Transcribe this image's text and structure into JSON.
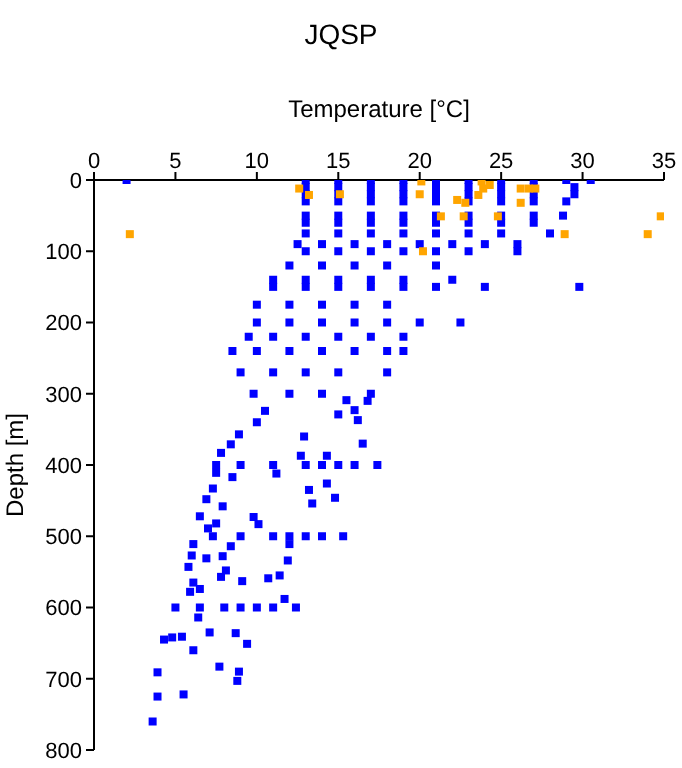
{
  "chart_data": {
    "type": "scatter",
    "title": "JQSP",
    "xlabel": "Temperature [°C]",
    "ylabel": "Depth [m]",
    "xlim": [
      0,
      35
    ],
    "xticks": [
      0,
      5,
      10,
      15,
      20,
      25,
      30,
      35
    ],
    "ylim": [
      800,
      0
    ],
    "yticks": [
      0,
      100,
      200,
      300,
      400,
      500,
      600,
      700,
      800
    ],
    "marker": "square",
    "series": [
      {
        "color": "#0000ff",
        "x": [
          2,
          13,
          15,
          17,
          19,
          21,
          23,
          25,
          27,
          29,
          30.5,
          13,
          15,
          17,
          19,
          21,
          23,
          25,
          27,
          29.5,
          13,
          15,
          17,
          19,
          21,
          23,
          25,
          27,
          29.5,
          13,
          15,
          17,
          19,
          21,
          23,
          25,
          27,
          29,
          13,
          15,
          17,
          19,
          21,
          23,
          25,
          27,
          28.8,
          13,
          15,
          17,
          19,
          21,
          23,
          25,
          27,
          13,
          15,
          17,
          19,
          21,
          23,
          25,
          28,
          12.5,
          14,
          16,
          18,
          20,
          22,
          24,
          26,
          13,
          15,
          17,
          19,
          21,
          23,
          26,
          12,
          14,
          16,
          18,
          21,
          11,
          13,
          15,
          17,
          19,
          22,
          11,
          13,
          15,
          17,
          19,
          21,
          24,
          29.8,
          10,
          12,
          14,
          16,
          18,
          10,
          12,
          14,
          16,
          18,
          20,
          22.5,
          9.5,
          11,
          13,
          15,
          17,
          19,
          8.5,
          10,
          12,
          14,
          16,
          18,
          19,
          9,
          11,
          13,
          15,
          18,
          9.8,
          12,
          14,
          17,
          10.5,
          16,
          15.5,
          16.8,
          10,
          15,
          16.2,
          8.9,
          12.9,
          16.5,
          8.4,
          7.8,
          12.7,
          14.3,
          7.5,
          9,
          11,
          13,
          14,
          15,
          16,
          17.4,
          7.5,
          8.5,
          11.2,
          7.3,
          13.2,
          14.3,
          6.9,
          14.8,
          13.4,
          7.9,
          6.5,
          9.8,
          10.1,
          7.5,
          7,
          7.3,
          9,
          11,
          12,
          13,
          14,
          15.3,
          8.4,
          6.1,
          12,
          6,
          6.9,
          7.9,
          11.9,
          5.8,
          8.1,
          11.4,
          7.8,
          10.7,
          9.1,
          6.1,
          6.5,
          5.9,
          11.7,
          5,
          6.5,
          8,
          9,
          10,
          11,
          12.4,
          6.4,
          7.1,
          8.7,
          4.3,
          4.8,
          5.4,
          9.4,
          6.1,
          7.7,
          8.9,
          3.9,
          8.8,
          3.9,
          5.5,
          3.6
        ],
        "values": [
          0,
          0,
          0,
          0,
          0,
          0,
          0,
          0,
          0,
          0,
          0,
          10,
          10,
          10,
          10,
          10,
          10,
          10,
          10,
          10,
          20,
          20,
          20,
          20,
          20,
          20,
          20,
          20,
          20,
          30,
          30,
          30,
          30,
          30,
          30,
          30,
          30,
          30,
          50,
          50,
          50,
          50,
          50,
          50,
          50,
          50,
          50,
          60,
          60,
          60,
          60,
          60,
          60,
          60,
          60,
          75,
          75,
          75,
          75,
          75,
          75,
          75,
          75,
          90,
          90,
          90,
          90,
          90,
          90,
          90,
          90,
          100,
          100,
          100,
          100,
          100,
          100,
          100,
          120,
          120,
          120,
          120,
          120,
          140,
          140,
          140,
          140,
          140,
          140,
          150,
          150,
          150,
          150,
          150,
          150,
          150,
          150,
          175,
          175,
          175,
          175,
          175,
          200,
          200,
          200,
          200,
          200,
          200,
          200,
          220,
          220,
          220,
          220,
          220,
          220,
          240,
          240,
          240,
          240,
          240,
          240,
          240,
          270,
          270,
          270,
          270,
          270,
          300,
          300,
          300,
          300,
          324,
          323,
          309,
          310,
          340,
          329,
          337,
          357,
          360,
          370,
          371,
          383,
          387,
          387,
          400,
          400,
          400,
          400,
          400,
          400,
          400,
          400,
          411,
          417,
          412,
          433,
          435,
          426,
          448,
          446,
          454,
          458,
          472,
          473,
          483,
          482,
          489,
          500,
          500,
          500,
          500,
          500,
          500,
          500,
          514,
          511,
          511,
          527,
          531,
          528,
          534,
          543,
          548,
          555,
          557,
          559,
          563,
          565,
          574,
          578,
          588,
          600,
          600,
          600,
          600,
          600,
          600,
          600,
          614,
          635,
          636,
          645,
          642,
          641,
          651,
          660,
          683,
          690,
          691,
          703,
          725,
          722,
          760
        ]
      },
      {
        "color": "#ffa500",
        "x": [
          12.6,
          13.2,
          15.1,
          20.1,
          20,
          23.8,
          23.9,
          24.3,
          23.6,
          22.3,
          22.8,
          26.2,
          26.7,
          27.1,
          26.2,
          21.3,
          22.7,
          24.8,
          34.8,
          2.2,
          28.9,
          34,
          20.2
        ],
        "values": [
          12,
          21,
          20,
          2,
          20,
          2,
          12,
          7,
          21,
          28,
          32,
          12,
          12,
          12,
          32,
          51,
          51,
          51,
          51,
          76,
          76,
          76,
          100
        ]
      }
    ]
  }
}
